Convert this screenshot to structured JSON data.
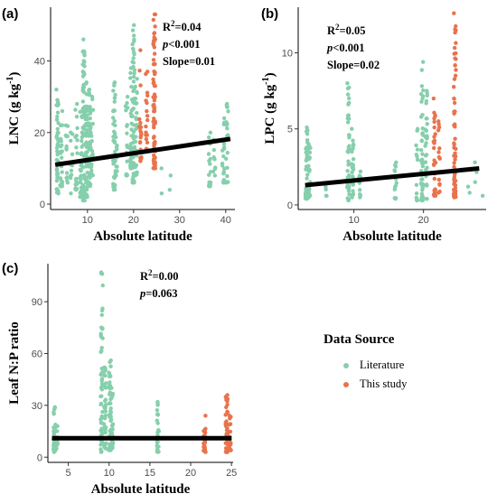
{
  "colors": {
    "literature": "#86cfac",
    "this_study": "#e8734c",
    "fit": "#000000",
    "axis": "#000000"
  },
  "legend": {
    "title": "Data Source",
    "items": [
      {
        "label": "Literature",
        "color": "#86cfac"
      },
      {
        "label": "This study",
        "color": "#e8734c"
      }
    ]
  },
  "chart_data": [
    {
      "panel": "(a)",
      "type": "scatter",
      "xlabel": "Absolute latitude",
      "ylabel": "LNC (g kg-1)",
      "xlim": [
        2,
        42
      ],
      "ylim": [
        -1.5,
        55
      ],
      "xticks": [
        10,
        20,
        30,
        40
      ],
      "yticks": [
        0,
        20,
        40
      ],
      "annotations": [
        "R2=0.04",
        "p<0.001",
        "Slope=0.01"
      ],
      "fit_line": {
        "x": [
          3,
          41
        ],
        "y": [
          11,
          18.2
        ]
      },
      "series": [
        {
          "name": "Literature",
          "columns": [
            {
              "x": 3.5,
              "ymin": 3,
              "ymax": 32,
              "n": 45
            },
            {
              "x": 4.3,
              "ymin": 5,
              "ymax": 26,
              "n": 26
            },
            {
              "x": 5.5,
              "ymin": 6,
              "ymax": 22,
              "n": 14
            },
            {
              "x": 6.5,
              "ymin": 3,
              "ymax": 20,
              "n": 12
            },
            {
              "x": 7.6,
              "ymin": 4,
              "ymax": 28,
              "n": 20
            },
            {
              "x": 8.6,
              "ymin": 2,
              "ymax": 26,
              "n": 30
            },
            {
              "x": 9.2,
              "ymin": 1,
              "ymax": 46,
              "n": 55
            },
            {
              "x": 9.8,
              "ymin": 2,
              "ymax": 34,
              "n": 60
            },
            {
              "x": 10.5,
              "ymin": 5,
              "ymax": 32,
              "n": 40
            },
            {
              "x": 11,
              "ymin": 8,
              "ymax": 30,
              "n": 22
            },
            {
              "x": 15.8,
              "ymin": 4,
              "ymax": 34,
              "n": 40
            },
            {
              "x": 16.2,
              "ymin": 8,
              "ymax": 22,
              "n": 15
            },
            {
              "x": 18.5,
              "ymin": 8,
              "ymax": 30,
              "n": 18
            },
            {
              "x": 19.5,
              "ymin": 10,
              "ymax": 38,
              "n": 30
            },
            {
              "x": 20,
              "ymin": 6,
              "ymax": 50,
              "n": 60
            },
            {
              "x": 20.6,
              "ymin": 8,
              "ymax": 35,
              "n": 28
            },
            {
              "x": 26,
              "ymin": 3,
              "ymax": 10,
              "n": 2
            },
            {
              "x": 28,
              "ymin": 4,
              "ymax": 8,
              "n": 2
            },
            {
              "x": 36.5,
              "ymin": 5,
              "ymax": 20,
              "n": 18
            },
            {
              "x": 37.5,
              "ymin": 8,
              "ymax": 18,
              "n": 8
            },
            {
              "x": 39.5,
              "ymin": 6,
              "ymax": 24,
              "n": 20
            },
            {
              "x": 40.3,
              "ymin": 6,
              "ymax": 28,
              "n": 20
            }
          ]
        },
        {
          "name": "This study",
          "columns": [
            {
              "x": 21.5,
              "ymin": 12,
              "ymax": 43,
              "n": 22
            },
            {
              "x": 22.8,
              "ymin": 15,
              "ymax": 37,
              "n": 18
            },
            {
              "x": 24.5,
              "ymin": 10,
              "ymax": 53,
              "n": 80
            }
          ]
        }
      ]
    },
    {
      "panel": "(b)",
      "type": "scatter",
      "xlabel": "Absolute latitude",
      "ylabel": "LPC (g kg-1)",
      "xlim": [
        2,
        29
      ],
      "ylim": [
        -0.3,
        13
      ],
      "xticks": [
        10,
        20
      ],
      "yticks": [
        0,
        5,
        10
      ],
      "annotations": [
        "R2=0.05",
        "p<0.001",
        "Slope=0.02"
      ],
      "fit_line": {
        "x": [
          3,
          28
        ],
        "y": [
          1.3,
          2.4
        ]
      },
      "series": [
        {
          "name": "Literature",
          "columns": [
            {
              "x": 3.2,
              "ymin": 0.4,
              "ymax": 5.1,
              "n": 55
            },
            {
              "x": 3.6,
              "ymin": 0.5,
              "ymax": 4,
              "n": 22
            },
            {
              "x": 6,
              "ymin": 0.6,
              "ymax": 1.2,
              "n": 4
            },
            {
              "x": 9.2,
              "ymin": 0.3,
              "ymax": 8,
              "n": 45
            },
            {
              "x": 9.8,
              "ymin": 0.5,
              "ymax": 5,
              "n": 30
            },
            {
              "x": 10.8,
              "ymin": 0.5,
              "ymax": 2.2,
              "n": 10
            },
            {
              "x": 16,
              "ymin": 0.4,
              "ymax": 2.8,
              "n": 14
            },
            {
              "x": 19,
              "ymin": 0.3,
              "ymax": 5,
              "n": 16
            },
            {
              "x": 19.8,
              "ymin": 0.3,
              "ymax": 9.4,
              "n": 45
            },
            {
              "x": 20.4,
              "ymin": 0.4,
              "ymax": 7.5,
              "n": 30
            },
            {
              "x": 26.5,
              "ymin": 0.8,
              "ymax": 1.2,
              "n": 2
            },
            {
              "x": 27.5,
              "ymin": 1.5,
              "ymax": 2.8,
              "n": 3
            },
            {
              "x": 28.6,
              "ymin": 0.3,
              "ymax": 0.6,
              "n": 1
            }
          ]
        },
        {
          "name": "This study",
          "columns": [
            {
              "x": 21.6,
              "ymin": 0.6,
              "ymax": 7,
              "n": 28
            },
            {
              "x": 22.2,
              "ymin": 0.8,
              "ymax": 5.5,
              "n": 14
            },
            {
              "x": 24.5,
              "ymin": 0.5,
              "ymax": 12.6,
              "n": 70
            }
          ]
        }
      ]
    },
    {
      "panel": "(c)",
      "type": "scatter",
      "xlabel": "Absolute latitude",
      "ylabel": "Leaf N:P ratio",
      "xlim": [
        2.5,
        25.2
      ],
      "ylim": [
        -3,
        112
      ],
      "xticks": [
        5,
        10,
        15,
        20,
        25
      ],
      "yticks": [
        0,
        30,
        60,
        90
      ],
      "annotations": [
        "R2=0.00",
        "p=0.063"
      ],
      "fit_line": {
        "x": [
          3,
          25
        ],
        "y": [
          11,
          11
        ]
      },
      "series": [
        {
          "name": "Literature",
          "columns": [
            {
              "x": 3.3,
              "ymin": 3,
              "ymax": 29,
              "n": 30
            },
            {
              "x": 3.6,
              "ymin": 5,
              "ymax": 18,
              "n": 15
            },
            {
              "x": 9.1,
              "ymin": 3,
              "ymax": 107,
              "n": 55
            },
            {
              "x": 9.5,
              "ymin": 5,
              "ymax": 52,
              "n": 30
            },
            {
              "x": 10.1,
              "ymin": 4,
              "ymax": 56,
              "n": 45
            },
            {
              "x": 10.4,
              "ymin": 5,
              "ymax": 40,
              "n": 25
            },
            {
              "x": 16,
              "ymin": 3,
              "ymax": 32,
              "n": 30
            }
          ]
        },
        {
          "name": "This study",
          "columns": [
            {
              "x": 21.7,
              "ymin": 3,
              "ymax": 24,
              "n": 28
            },
            {
              "x": 24.4,
              "ymin": 3,
              "ymax": 36,
              "n": 45
            },
            {
              "x": 24.8,
              "ymin": 4,
              "ymax": 24,
              "n": 22
            }
          ]
        }
      ]
    }
  ]
}
